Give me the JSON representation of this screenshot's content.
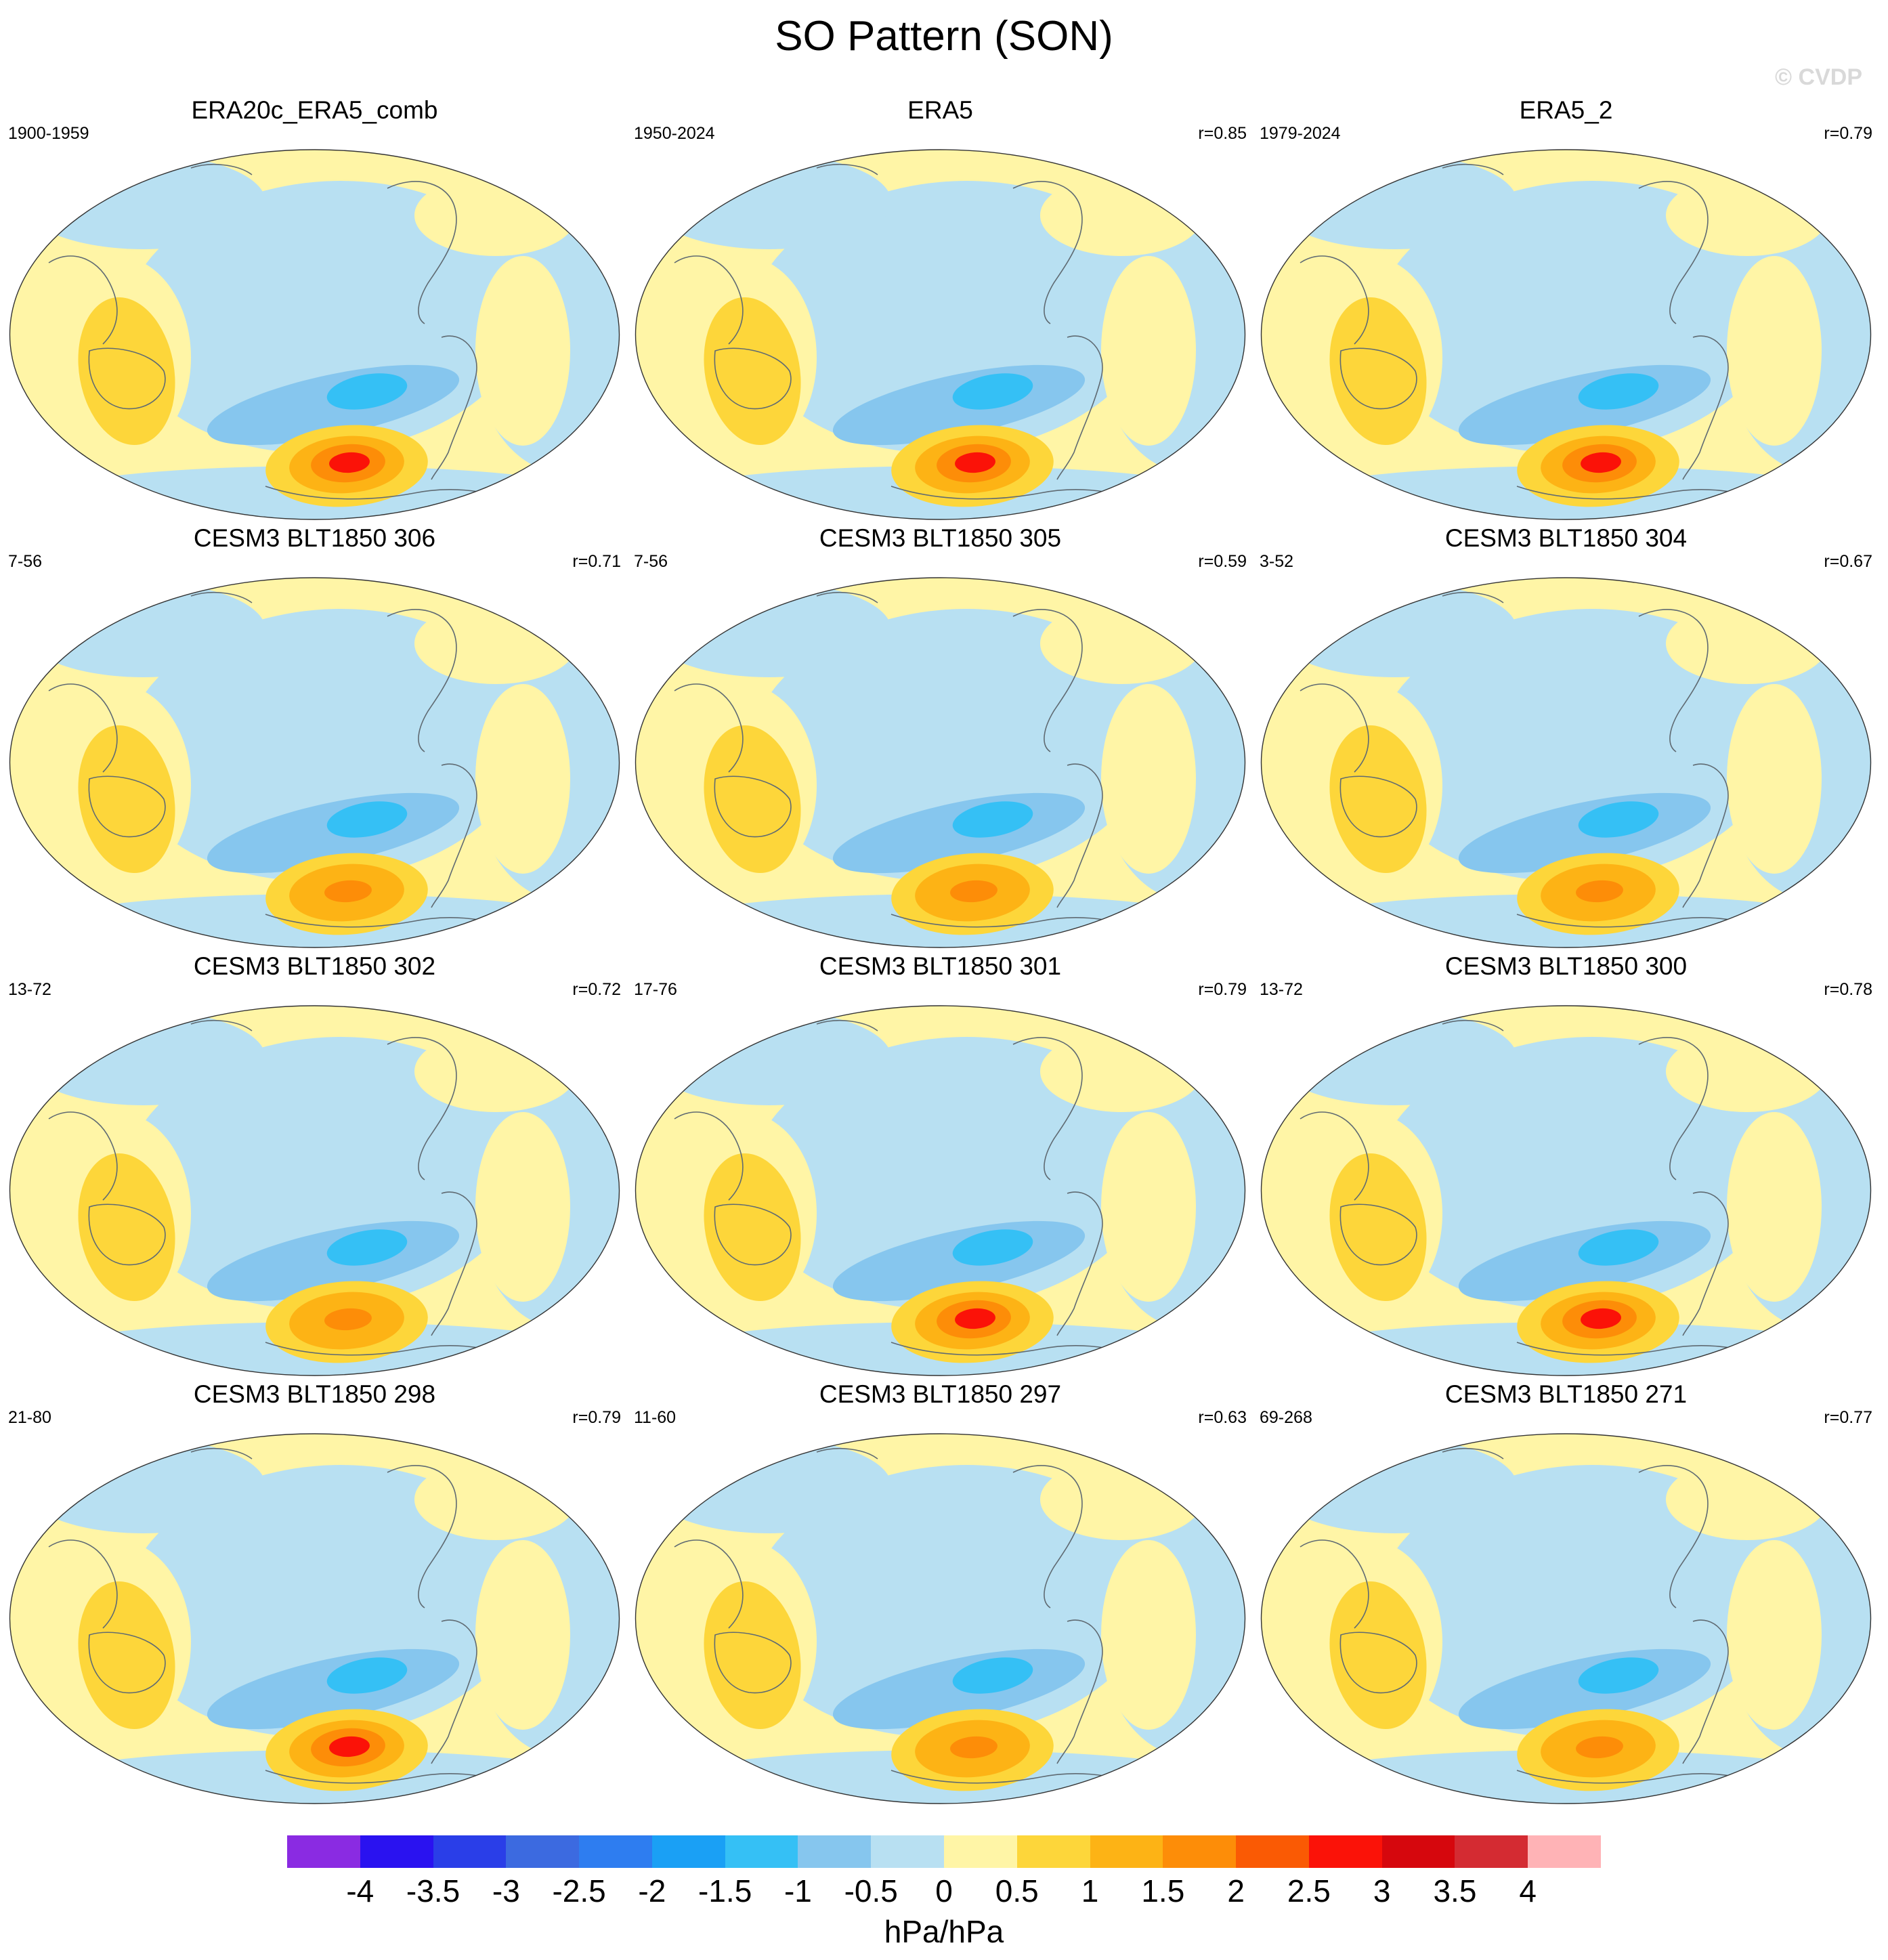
{
  "title": "SO Pattern (SON)",
  "watermark": "© CVDP",
  "panels": [
    {
      "title": "ERA20c_ERA5_comb",
      "years": "1900-1959",
      "corr": ""
    },
    {
      "title": "ERA5",
      "years": "1950-2024",
      "corr": "r=0.85"
    },
    {
      "title": "ERA5_2",
      "years": "1979-2024",
      "corr": "r=0.79"
    },
    {
      "title": "CESM3 BLT1850 306",
      "years": "7-56",
      "corr": "r=0.71"
    },
    {
      "title": "CESM3 BLT1850 305",
      "years": "7-56",
      "corr": "r=0.59"
    },
    {
      "title": "CESM3 BLT1850 304",
      "years": "3-52",
      "corr": "r=0.67"
    },
    {
      "title": "CESM3 BLT1850 302",
      "years": "13-72",
      "corr": "r=0.72"
    },
    {
      "title": "CESM3 BLT1850 301",
      "years": "17-76",
      "corr": "r=0.79"
    },
    {
      "title": "CESM3 BLT1850 300",
      "years": "13-72",
      "corr": "r=0.78"
    },
    {
      "title": "CESM3 BLT1850 298",
      "years": "21-80",
      "corr": "r=0.79"
    },
    {
      "title": "CESM3 BLT1850 297",
      "years": "11-60",
      "corr": "r=0.63"
    },
    {
      "title": "CESM3 BLT1850 271",
      "years": "69-268",
      "corr": "r=0.77"
    }
  ],
  "colorbar": {
    "unit": "hPa/hPa",
    "ticks": [
      "-4",
      "-3.5",
      "-3",
      "-2.5",
      "-2",
      "-1.5",
      "-1",
      "-0.5",
      "0",
      "0.5",
      "1",
      "1.5",
      "2",
      "2.5",
      "3",
      "3.5",
      "4"
    ],
    "colors": [
      "#8a2be2",
      "#2a12f0",
      "#2a3ee8",
      "#3c6ae0",
      "#2e7df0",
      "#1aa0f5",
      "#35c0f5",
      "#86c6ee",
      "#b8e0f2",
      "#fff5a6",
      "#fdd63a",
      "#fdb315",
      "#fd8d08",
      "#fa5a04",
      "#fb1208",
      "#d6070d",
      "#d42b32",
      "#ffb3b6"
    ]
  },
  "map_colors": {
    "land_outline": "#5f6a72",
    "neg_light": "#b8e0f2",
    "neg_mid": "#86c6ee",
    "neg_strong": "#35c0f5",
    "pos_light": "#fff5a6",
    "pos_mid": "#fdd63a",
    "pos_strong": "#fdb315",
    "pos_orange": "#fd8d08",
    "pos_red": "#fb1208"
  },
  "panel_intensity": [
    3,
    3,
    3,
    2,
    2,
    2,
    2,
    3,
    3,
    3,
    2,
    2
  ]
}
